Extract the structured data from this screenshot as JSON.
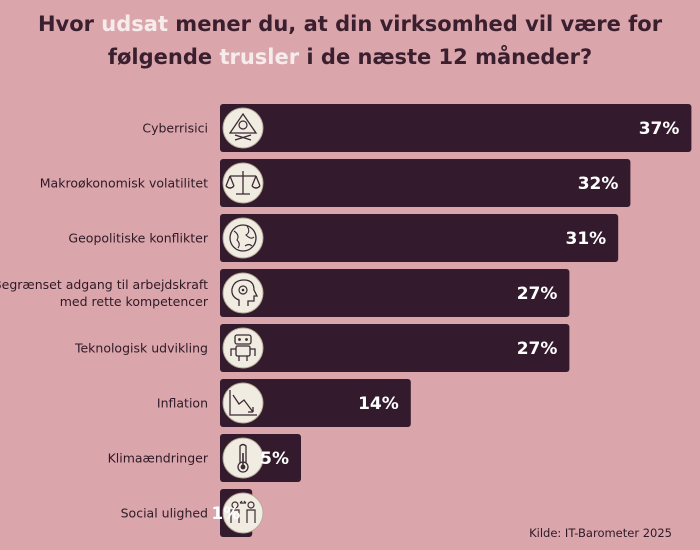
{
  "title": {
    "line1": [
      "Hvor ",
      "udsat",
      " mener du, at din virksomhed vil være for"
    ],
    "line2": [
      "følgende ",
      "trusler",
      " i de næste 12 måneder?"
    ]
  },
  "colors": {
    "background": "#dba5ac",
    "bar": "#331b2d",
    "title_text": "#3a1f2e",
    "title_highlight": "#f7ecec",
    "value_text": "#ffffff",
    "icon_fill": "#f1ece1"
  },
  "source": "Kilde: IT-Barometer 2025",
  "chart_data": {
    "type": "bar",
    "orientation": "horizontal",
    "categories": [
      [
        "Cyberrisici"
      ],
      [
        "Makroøkonomisk volatilitet"
      ],
      [
        "Geopolitiske konflikter"
      ],
      [
        "Begrænset adgang til arbejdskraft",
        "med rette kompetencer"
      ],
      [
        "Teknologisk udvikling"
      ],
      [
        "Inflation"
      ],
      [
        "Klimaændringer"
      ],
      [
        "Social ulighed"
      ]
    ],
    "values": [
      37,
      32,
      31,
      27,
      27,
      14,
      5,
      1
    ],
    "value_labels": [
      "37%",
      "32%",
      "31%",
      "27%",
      "27%",
      "14%",
      "5%",
      "1%"
    ],
    "icons": [
      "skull-crossbones-icon",
      "balance-scale-icon",
      "globe-icon",
      "head-gears-icon",
      "robot-icon",
      "trend-down-icon",
      "thermometer-icon",
      "people-inequality-icon"
    ],
    "xlim": [
      0,
      37
    ],
    "grid": false,
    "legend": "none"
  }
}
